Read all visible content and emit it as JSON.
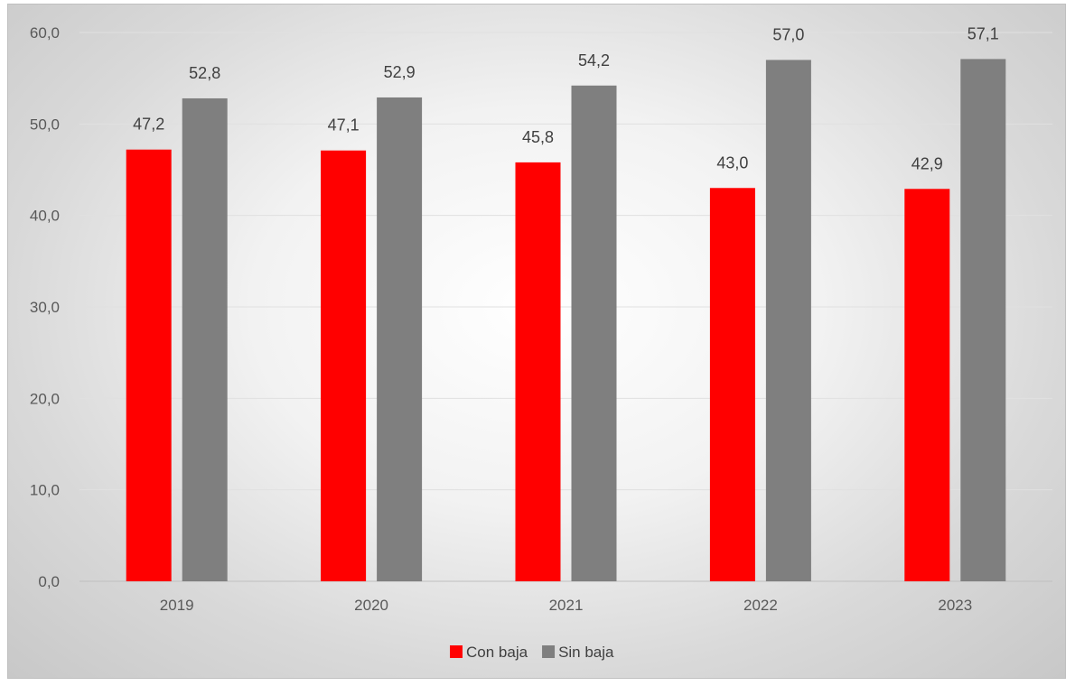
{
  "chart_data": {
    "type": "bar",
    "title": "",
    "xlabel": "",
    "ylabel": "",
    "categories": [
      "2019",
      "2020",
      "2021",
      "2022",
      "2023"
    ],
    "series": [
      {
        "name": "Con baja",
        "color": "#ff0000",
        "values": [
          47.2,
          47.1,
          45.8,
          43.0,
          42.9
        ],
        "labels": [
          "47,2",
          "47,1",
          "45,8",
          "43,0",
          "42,9"
        ]
      },
      {
        "name": "Sin baja",
        "color": "#7f7f7f",
        "values": [
          52.8,
          52.9,
          54.2,
          57.0,
          57.1
        ],
        "labels": [
          "52,8",
          "52,9",
          "54,2",
          "57,0",
          "57,1"
        ]
      }
    ],
    "ylim": [
      0,
      60
    ],
    "yticks": [
      0,
      10,
      20,
      30,
      40,
      50,
      60
    ],
    "ytick_labels": [
      "0,0",
      "10,0",
      "20,0",
      "30,0",
      "40,0",
      "50,0",
      "60,0"
    ],
    "grid": true,
    "legend_position": "bottom"
  }
}
